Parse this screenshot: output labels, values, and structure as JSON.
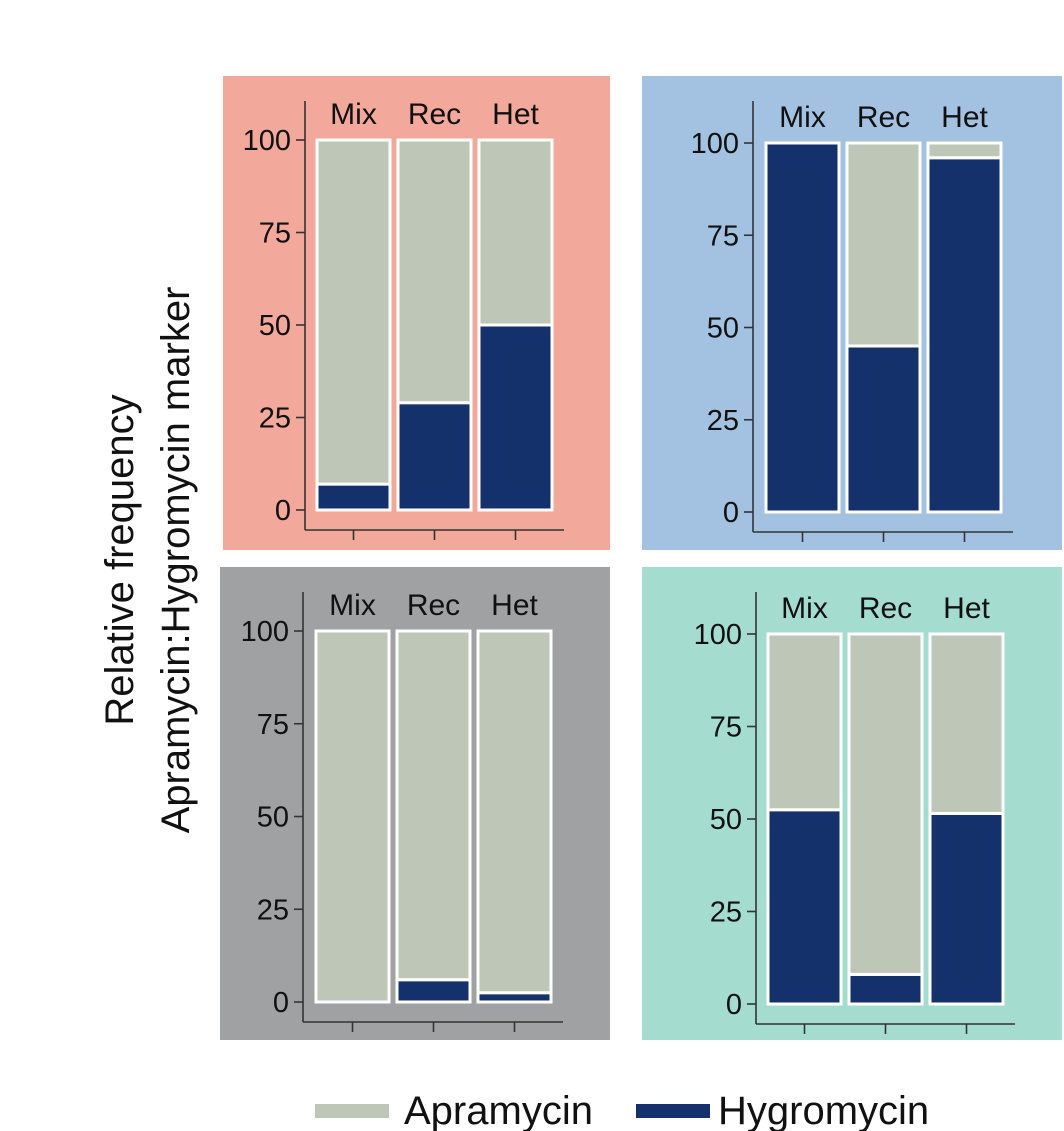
{
  "chart_data": {
    "type": "bar",
    "stacked": true,
    "ylabel_lines": [
      "Relative frequency",
      "Apramycin:Hygromycin marker"
    ],
    "categories": [
      "Mix",
      "Rec",
      "Het"
    ],
    "yticks": [
      0,
      25,
      50,
      75,
      100
    ],
    "ylim": [
      0,
      100
    ],
    "legend": {
      "position": "bottom",
      "items": [
        {
          "name": "Apramycin",
          "color": "#bec6b8"
        },
        {
          "name": "Hygromycin",
          "color": "#14316b"
        }
      ]
    },
    "panels": [
      {
        "background": "#f2a89a",
        "series": [
          {
            "name": "Hygromycin",
            "values": [
              7,
              29,
              50
            ]
          },
          {
            "name": "Apramycin",
            "values": [
              93,
              71,
              50
            ]
          }
        ]
      },
      {
        "background": "#a3c2e2",
        "series": [
          {
            "name": "Hygromycin",
            "values": [
              100,
              45,
              96
            ]
          },
          {
            "name": "Apramycin",
            "values": [
              0,
              55,
              4
            ]
          }
        ]
      },
      {
        "background": "#a0a1a3",
        "series": [
          {
            "name": "Hygromycin",
            "values": [
              0,
              6,
              2.5
            ]
          },
          {
            "name": "Apramycin",
            "values": [
              100,
              94,
              97.5
            ]
          }
        ]
      },
      {
        "background": "#a4dccf",
        "series": [
          {
            "name": "Hygromycin",
            "values": [
              52.5,
              8,
              51.5
            ]
          },
          {
            "name": "Apramycin",
            "values": [
              47.5,
              92,
              48.5
            ]
          }
        ]
      }
    ]
  }
}
